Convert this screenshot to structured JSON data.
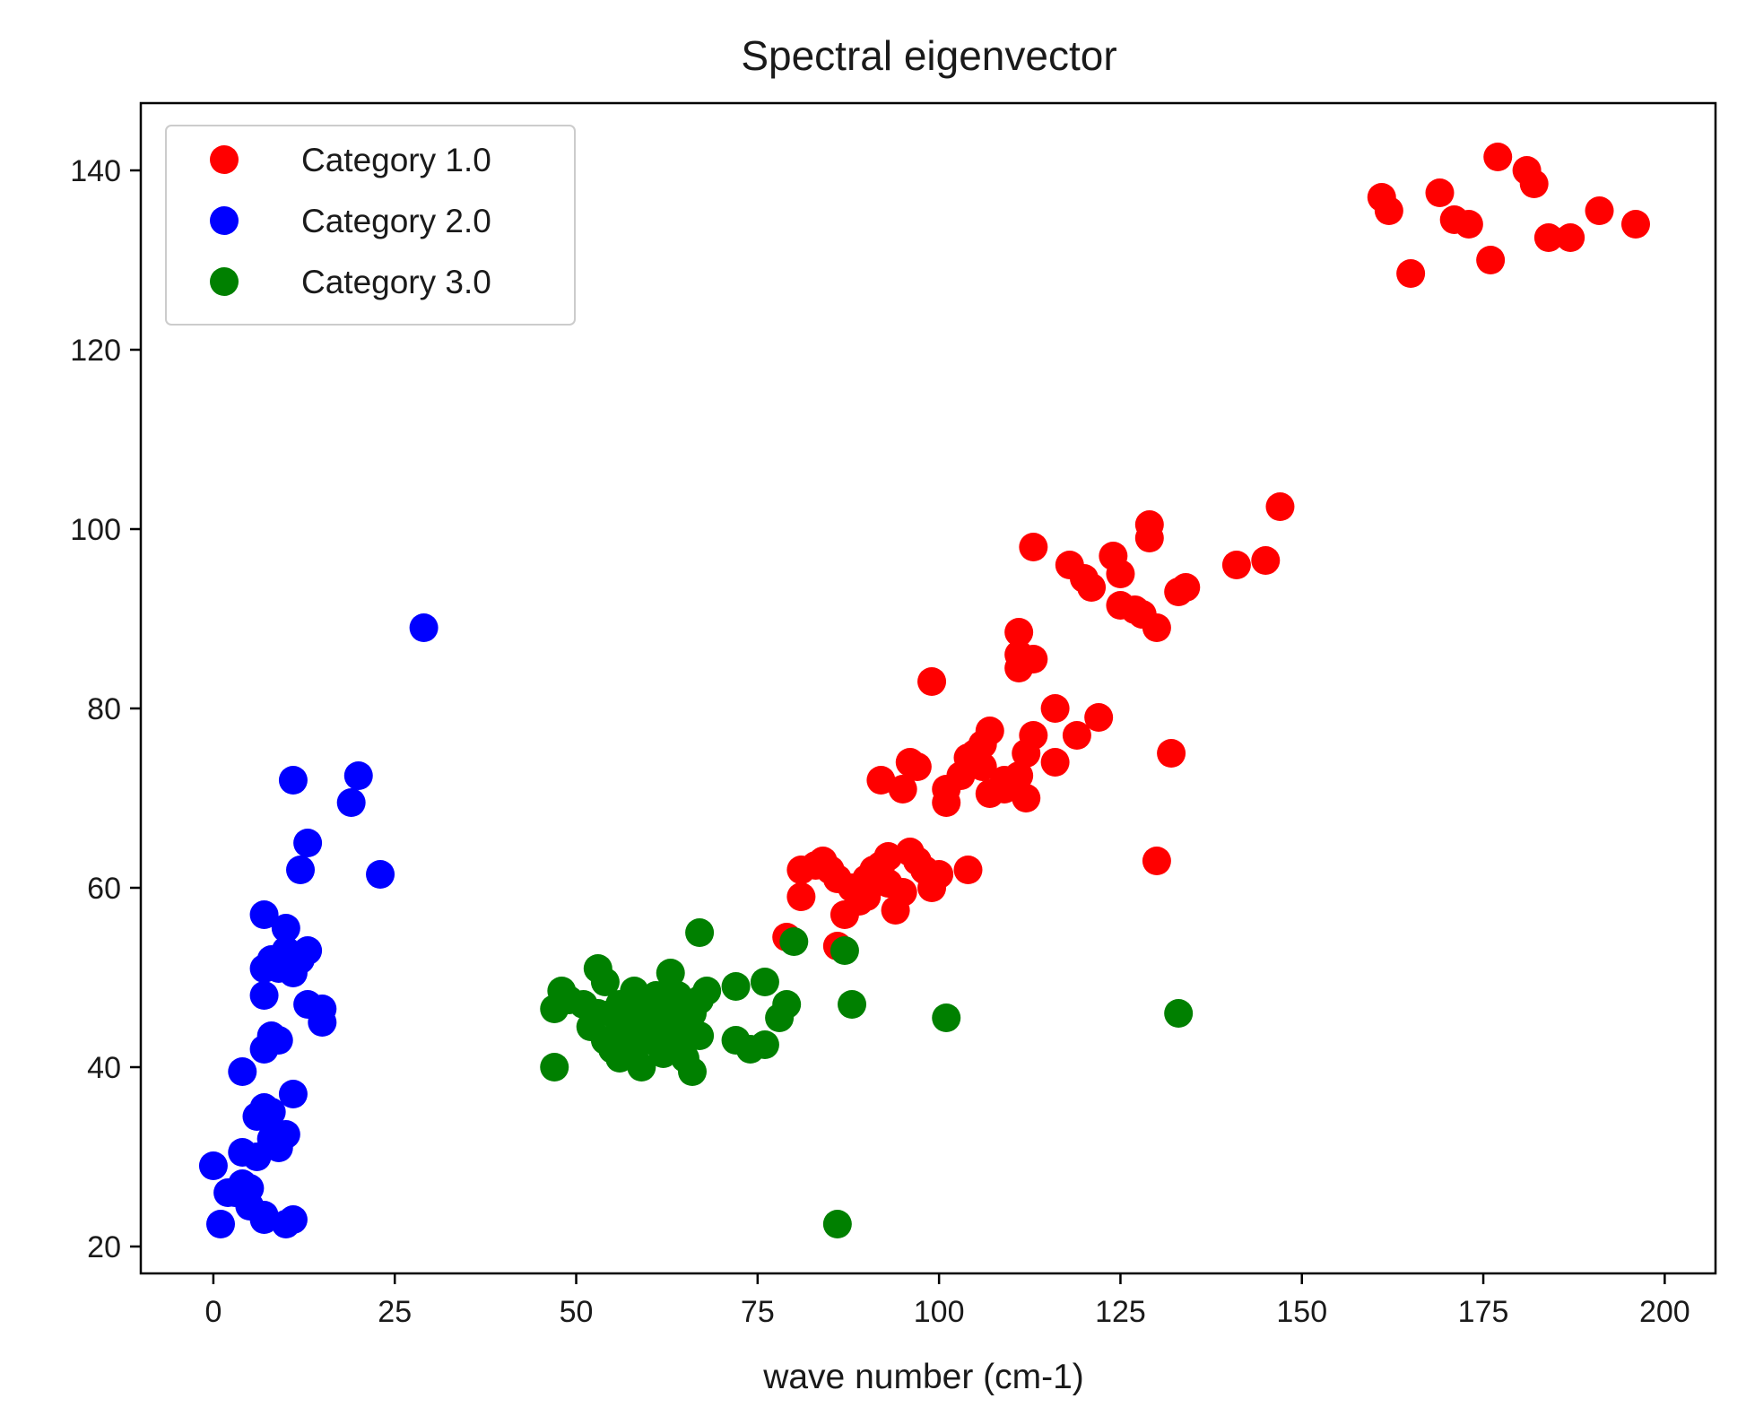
{
  "chart_data": {
    "type": "scatter",
    "title": "Spectral eigenvector",
    "xlabel": "wave number (cm-1)",
    "ylabel": "",
    "xlim": [
      -10,
      207
    ],
    "ylim": [
      17,
      147.5
    ],
    "xticks": [
      0,
      25,
      50,
      75,
      100,
      125,
      150,
      175,
      200
    ],
    "yticks": [
      20,
      40,
      60,
      80,
      100,
      120,
      140
    ],
    "grid": false,
    "legend_position": "upper-left",
    "series": [
      {
        "name": "Category 1.0",
        "color": "#ff0000",
        "points": [
          [
            79,
            54.5
          ],
          [
            83,
            62.5
          ],
          [
            84,
            63
          ],
          [
            85,
            62
          ],
          [
            81,
            62
          ],
          [
            81,
            59
          ],
          [
            87,
            57
          ],
          [
            86,
            53.5
          ],
          [
            86,
            61
          ],
          [
            88,
            60
          ],
          [
            89,
            58.5
          ],
          [
            90,
            61
          ],
          [
            90,
            59
          ],
          [
            91,
            62
          ],
          [
            92,
            62.5
          ],
          [
            93,
            63.5
          ],
          [
            93,
            60.5
          ],
          [
            94,
            57.5
          ],
          [
            95,
            59.5
          ],
          [
            96,
            64
          ],
          [
            97,
            63
          ],
          [
            98,
            62
          ],
          [
            99,
            60
          ],
          [
            100,
            61.5
          ],
          [
            99,
            61
          ],
          [
            104,
            62
          ],
          [
            92,
            72
          ],
          [
            95,
            71
          ],
          [
            96,
            74
          ],
          [
            97,
            73.5
          ],
          [
            101,
            71
          ],
          [
            101,
            69.5
          ],
          [
            103,
            72.5
          ],
          [
            104,
            74.5
          ],
          [
            105,
            75
          ],
          [
            106,
            76
          ],
          [
            106,
            73.5
          ],
          [
            107,
            77.5
          ],
          [
            107,
            70.5
          ],
          [
            109,
            72
          ],
          [
            109,
            71
          ],
          [
            111,
            72.5
          ],
          [
            112,
            75
          ],
          [
            113,
            77
          ],
          [
            112,
            70
          ],
          [
            116,
            74
          ],
          [
            119,
            77
          ],
          [
            116,
            80
          ],
          [
            122,
            79
          ],
          [
            132,
            75
          ],
          [
            130,
            63
          ],
          [
            99,
            83
          ],
          [
            111,
            84.5
          ],
          [
            111,
            86
          ],
          [
            111,
            88.5
          ],
          [
            113,
            85.5
          ],
          [
            113,
            98
          ],
          [
            118,
            96
          ],
          [
            120,
            94.5
          ],
          [
            121,
            93.5
          ],
          [
            124,
            97
          ],
          [
            125,
            95
          ],
          [
            125,
            91.5
          ],
          [
            127,
            91
          ],
          [
            128,
            90.5
          ],
          [
            130,
            89
          ],
          [
            129,
            100.5
          ],
          [
            129,
            99
          ],
          [
            133,
            93
          ],
          [
            134,
            93.5
          ],
          [
            141,
            96
          ],
          [
            145,
            96.5
          ],
          [
            147,
            102.5
          ],
          [
            161,
            137
          ],
          [
            162,
            135.5
          ],
          [
            165,
            128.5
          ],
          [
            169,
            137.5
          ],
          [
            171,
            134.5
          ],
          [
            173,
            134
          ],
          [
            177,
            141.5
          ],
          [
            176,
            130
          ],
          [
            181,
            140
          ],
          [
            182,
            138.5
          ],
          [
            184,
            132.5
          ],
          [
            187,
            132.5
          ],
          [
            191,
            135.5
          ],
          [
            196,
            134
          ]
        ]
      },
      {
        "name": "Category 2.0",
        "color": "#0000ff",
        "points": [
          [
            0,
            29
          ],
          [
            1,
            22.5
          ],
          [
            2,
            26
          ],
          [
            3,
            26
          ],
          [
            4,
            30.5
          ],
          [
            4,
            27
          ],
          [
            5,
            26.5
          ],
          [
            5,
            24.5
          ],
          [
            6,
            30
          ],
          [
            6,
            34.5
          ],
          [
            7,
            35.5
          ],
          [
            7,
            23
          ],
          [
            7,
            23.5
          ],
          [
            8,
            32
          ],
          [
            8,
            35
          ],
          [
            9,
            31
          ],
          [
            10,
            32.5
          ],
          [
            10,
            22.5
          ],
          [
            11,
            23
          ],
          [
            11,
            37
          ],
          [
            4,
            39.5
          ],
          [
            7,
            42
          ],
          [
            8,
            43.5
          ],
          [
            9,
            43
          ],
          [
            7,
            48
          ],
          [
            7,
            51
          ],
          [
            8,
            52
          ],
          [
            9,
            52
          ],
          [
            9,
            51
          ],
          [
            10,
            53
          ],
          [
            10,
            55.5
          ],
          [
            11,
            52.5
          ],
          [
            11,
            50.5
          ],
          [
            12,
            52
          ],
          [
            13,
            53
          ],
          [
            7,
            57
          ],
          [
            13,
            47
          ],
          [
            15,
            46.5
          ],
          [
            15,
            45
          ],
          [
            13,
            65
          ],
          [
            12,
            62
          ],
          [
            11,
            72
          ],
          [
            19,
            69.5
          ],
          [
            20,
            72.5
          ],
          [
            23,
            61.5
          ],
          [
            29,
            89
          ]
        ]
      },
      {
        "name": "Category 3.0",
        "color": "#008000",
        "points": [
          [
            47,
            40
          ],
          [
            47,
            46.5
          ],
          [
            48,
            48.5
          ],
          [
            49,
            47.5
          ],
          [
            51,
            47
          ],
          [
            52,
            44.5
          ],
          [
            53,
            46
          ],
          [
            53,
            51
          ],
          [
            54,
            49.5
          ],
          [
            54,
            43
          ],
          [
            55,
            42
          ],
          [
            55,
            46
          ],
          [
            56,
            44
          ],
          [
            56,
            47
          ],
          [
            56,
            41
          ],
          [
            57,
            45
          ],
          [
            57,
            43.5
          ],
          [
            58,
            46.5
          ],
          [
            58,
            48.5
          ],
          [
            58,
            44
          ],
          [
            58,
            42
          ],
          [
            59,
            40
          ],
          [
            59,
            45.5
          ],
          [
            60,
            47
          ],
          [
            60,
            43
          ],
          [
            61,
            48
          ],
          [
            61,
            45.5
          ],
          [
            62,
            44
          ],
          [
            62,
            41.5
          ],
          [
            63,
            46
          ],
          [
            63,
            50.5
          ],
          [
            64,
            48
          ],
          [
            64,
            43
          ],
          [
            65,
            44.5
          ],
          [
            65,
            41
          ],
          [
            66,
            39.5
          ],
          [
            66,
            46
          ],
          [
            67,
            47.5
          ],
          [
            67,
            43.5
          ],
          [
            68,
            48.5
          ],
          [
            67,
            55
          ],
          [
            72,
            49
          ],
          [
            72,
            43
          ],
          [
            74,
            42
          ],
          [
            76,
            42.5
          ],
          [
            76,
            49.5
          ],
          [
            78,
            45.5
          ],
          [
            79,
            47
          ],
          [
            80,
            54
          ],
          [
            87,
            53
          ],
          [
            88,
            47
          ],
          [
            101,
            45.5
          ],
          [
            133,
            46
          ],
          [
            86,
            22.5
          ]
        ]
      }
    ]
  }
}
